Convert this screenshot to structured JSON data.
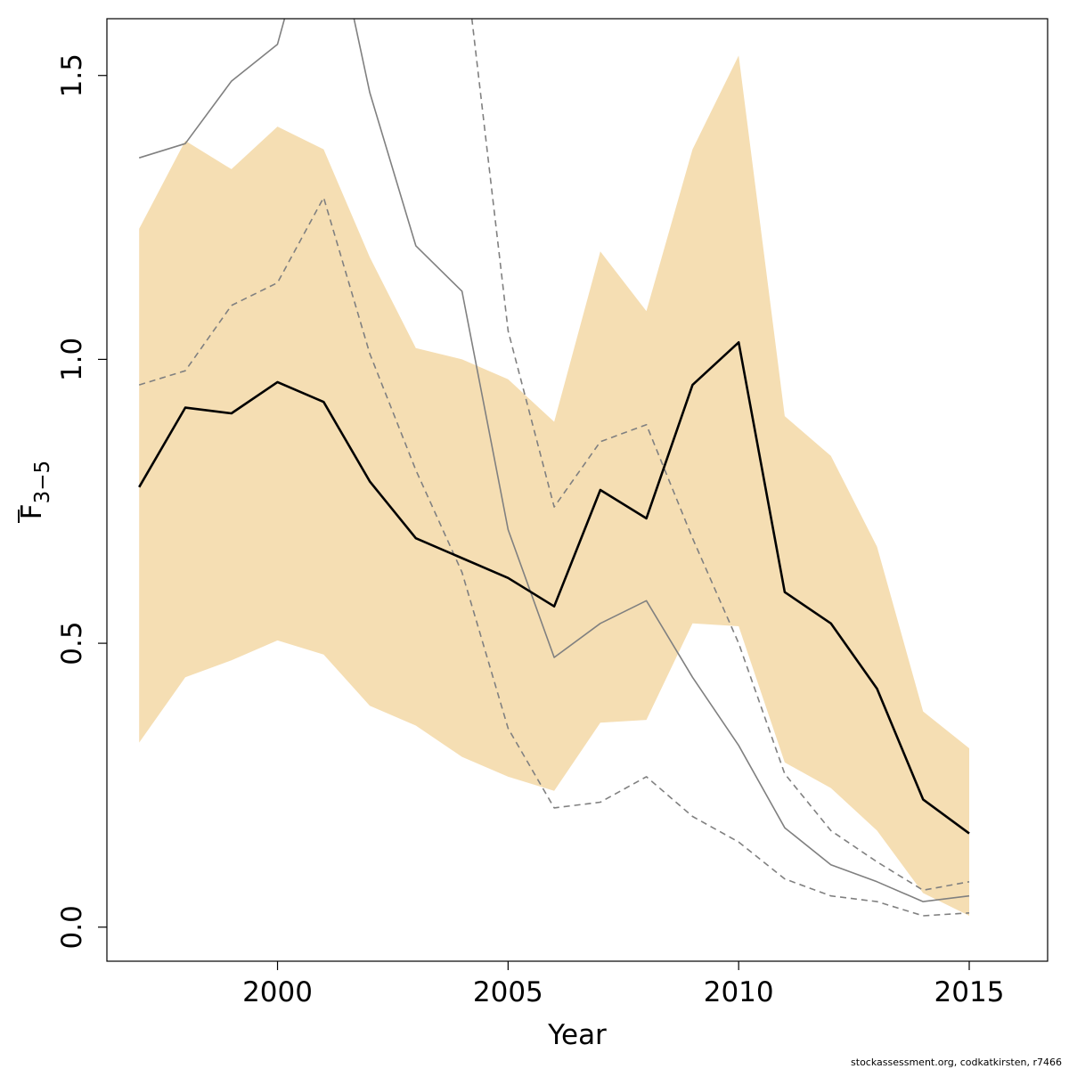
{
  "chart_data": {
    "type": "line",
    "title": "",
    "xlabel": "Year",
    "ylabel": "F",
    "ylabel_subscript": "3−5",
    "xlim": [
      1996.3,
      2016.7
    ],
    "ylim": [
      -0.06,
      1.6
    ],
    "x_ticks": [
      2000,
      2005,
      2010,
      2015
    ],
    "x_tick_labels": [
      "2000",
      "2005",
      "2010",
      "2015"
    ],
    "y_ticks": [
      0.0,
      0.5,
      1.0,
      1.5
    ],
    "y_tick_labels": [
      "0.0",
      "0.5",
      "1.0",
      "1.5"
    ],
    "grid": false,
    "x": [
      1997,
      1998,
      1999,
      2000,
      2001,
      2002,
      2003,
      2004,
      2005,
      2006,
      2007,
      2008,
      2009,
      2010,
      2011,
      2012,
      2013,
      2014,
      2015
    ],
    "band": {
      "color": "#f5deb3",
      "lower": [
        0.325,
        0.44,
        0.47,
        0.505,
        0.48,
        0.39,
        0.355,
        0.3,
        0.265,
        0.24,
        0.36,
        0.365,
        0.535,
        0.53,
        0.29,
        0.245,
        0.17,
        0.06,
        0.02
      ],
      "upper": [
        1.23,
        1.385,
        1.335,
        1.41,
        1.37,
        1.18,
        1.02,
        1.0,
        0.965,
        0.89,
        1.19,
        1.085,
        1.37,
        1.535,
        0.9,
        0.83,
        0.67,
        0.38,
        0.315
      ]
    },
    "series": [
      {
        "role": "estimate",
        "color": "#000000",
        "style": "solid",
        "values": [
          0.775,
          0.915,
          0.905,
          0.96,
          0.925,
          0.785,
          0.685,
          0.65,
          0.615,
          0.565,
          0.77,
          0.72,
          0.955,
          1.03,
          0.59,
          0.535,
          0.42,
          0.225,
          0.165
        ]
      },
      {
        "role": "upper-solid",
        "color": "#808080",
        "style": "solid",
        "values": [
          1.355,
          1.38,
          1.49,
          1.555,
          1.85,
          1.47,
          1.2,
          1.12,
          0.7,
          0.475,
          0.535,
          0.575,
          0.44,
          0.32,
          0.175,
          0.11,
          0.08,
          0.045,
          0.055
        ]
      },
      {
        "role": "upper-dashed",
        "color": "#808080",
        "style": "dashed",
        "values": [
          0.955,
          0.98,
          1.095,
          1.135,
          1.285,
          1.01,
          0.805,
          0.625,
          0.35,
          0.21,
          0.22,
          0.265,
          0.195,
          0.15,
          0.085,
          0.055,
          0.045,
          0.02,
          0.025
        ]
      },
      {
        "role": "lower-dashed",
        "color": "#808080",
        "style": "dashed",
        "values": [
          null,
          null,
          null,
          null,
          null,
          null,
          null,
          1.75,
          1.05,
          0.74,
          0.855,
          0.885,
          0.685,
          0.5,
          0.27,
          0.17,
          0.115,
          0.065,
          0.08
        ]
      }
    ]
  },
  "footer": {
    "credit": "stockassessment.org, codkatkirsten, r7466"
  }
}
